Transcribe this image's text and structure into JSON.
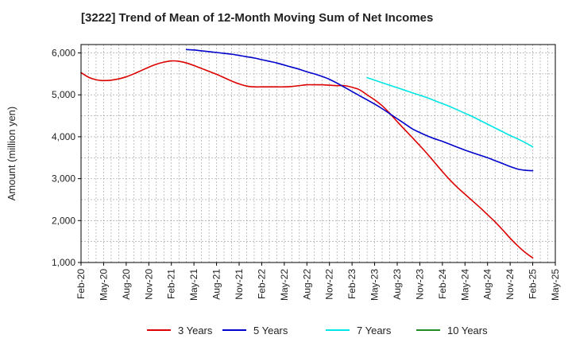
{
  "chart_data": {
    "type": "line",
    "title": "[3222]  Trend of Mean of 12-Month Moving Sum of Net Incomes",
    "xlabel": "",
    "ylabel": "Amount (million yen)",
    "ylim": [
      1000,
      6200
    ],
    "yticks": [
      1000,
      2000,
      3000,
      4000,
      5000,
      6000
    ],
    "ytick_labels": [
      "1,000",
      "2,000",
      "3,000",
      "4,000",
      "5,000",
      "6,000"
    ],
    "xlim": [
      0,
      63
    ],
    "xticks": [
      0,
      3,
      6,
      9,
      12,
      15,
      18,
      21,
      24,
      27,
      30,
      33,
      36,
      39,
      42,
      45,
      48,
      51,
      54,
      57,
      60,
      63
    ],
    "xtick_labels": [
      "Feb-20",
      "May-20",
      "Aug-20",
      "Nov-20",
      "Feb-21",
      "May-21",
      "Aug-21",
      "Nov-21",
      "Feb-22",
      "May-22",
      "Aug-22",
      "Nov-22",
      "Feb-23",
      "May-23",
      "Aug-23",
      "Nov-23",
      "Feb-24",
      "May-24",
      "Aug-24",
      "Nov-24",
      "Feb-25",
      "May-25"
    ],
    "grid": true,
    "legend_position": "bottom",
    "series": [
      {
        "name": "3 Years",
        "color": "#dd0000",
        "x": [
          0,
          1,
          2,
          3,
          4,
          5,
          6,
          7,
          8,
          9,
          10,
          11,
          12,
          13,
          14,
          15,
          16,
          17,
          18,
          19,
          20,
          21,
          22,
          23,
          24,
          25,
          26,
          27,
          28,
          29,
          30,
          31,
          32,
          33,
          34,
          35,
          36,
          37,
          38,
          39,
          40,
          41,
          42,
          43,
          44,
          45,
          46,
          47,
          48,
          49,
          50,
          51,
          52,
          53,
          54,
          55,
          56,
          57,
          58,
          59,
          60
        ],
        "values": [
          5530,
          5420,
          5360,
          5340,
          5350,
          5380,
          5430,
          5500,
          5580,
          5660,
          5730,
          5780,
          5810,
          5800,
          5760,
          5700,
          5630,
          5560,
          5490,
          5410,
          5330,
          5260,
          5210,
          5190,
          5190,
          5190,
          5190,
          5190,
          5200,
          5220,
          5240,
          5240,
          5240,
          5230,
          5220,
          5220,
          5180,
          5120,
          5000,
          4880,
          4740,
          4560,
          4360,
          4170,
          3980,
          3790,
          3590,
          3380,
          3170,
          2970,
          2790,
          2630,
          2470,
          2310,
          2140,
          1970,
          1780,
          1580,
          1400,
          1240,
          1110
        ]
      },
      {
        "name": "5 Years",
        "color": "#0000cc",
        "x": [
          14,
          15,
          16,
          17,
          18,
          19,
          20,
          21,
          22,
          23,
          24,
          25,
          26,
          27,
          28,
          29,
          30,
          31,
          32,
          33,
          34,
          35,
          36,
          37,
          38,
          39,
          40,
          41,
          42,
          43,
          44,
          45,
          46,
          47,
          48,
          49,
          50,
          51,
          52,
          53,
          54,
          55,
          56,
          57,
          58,
          59,
          60
        ],
        "values": [
          6080,
          6070,
          6050,
          6030,
          6010,
          5990,
          5970,
          5940,
          5910,
          5880,
          5840,
          5800,
          5760,
          5710,
          5660,
          5610,
          5550,
          5500,
          5440,
          5370,
          5280,
          5180,
          5080,
          4980,
          4880,
          4780,
          4670,
          4550,
          4430,
          4310,
          4190,
          4100,
          4020,
          3950,
          3890,
          3820,
          3750,
          3680,
          3620,
          3560,
          3500,
          3430,
          3360,
          3290,
          3230,
          3200,
          3190
        ]
      },
      {
        "name": "7 Years",
        "color": "#00e5e5",
        "x": [
          38,
          39,
          40,
          41,
          42,
          43,
          44,
          45,
          46,
          47,
          48,
          49,
          50,
          51,
          52,
          53,
          54,
          55,
          56,
          57,
          58,
          59,
          60
        ],
        "values": [
          5410,
          5350,
          5290,
          5230,
          5170,
          5110,
          5050,
          4990,
          4930,
          4860,
          4790,
          4720,
          4640,
          4560,
          4480,
          4390,
          4300,
          4210,
          4120,
          4030,
          3950,
          3860,
          3760
        ]
      },
      {
        "name": "10 Years",
        "color": "#228B22",
        "x": [],
        "values": []
      }
    ]
  }
}
